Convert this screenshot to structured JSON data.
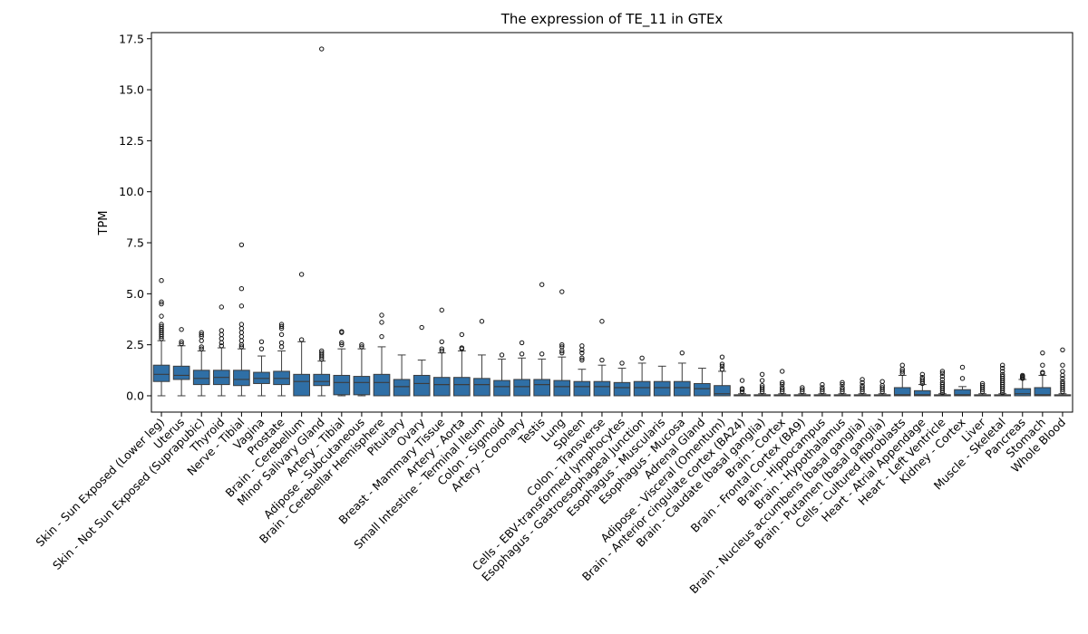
{
  "chart_data": {
    "type": "box",
    "title": "The expression of TE_11 in GTEx",
    "xlabel": "",
    "ylabel": "TPM",
    "ylim": [
      -0.8,
      17.8
    ],
    "yticks": [
      0.0,
      2.5,
      5.0,
      7.5,
      10.0,
      12.5,
      15.0,
      17.5
    ],
    "ytick_labels": [
      "0.0",
      "2.5",
      "5.0",
      "7.5",
      "10.0",
      "12.5",
      "15.0",
      "17.5"
    ],
    "grid": false,
    "legend": "none",
    "colors": {
      "box": "#2f6fa6",
      "line": "#3c3c3c"
    },
    "categories": [
      "Skin - Sun Exposed (Lower leg)",
      "Uterus",
      "Skin - Not Sun Exposed (Suprapubic)",
      "Thyroid",
      "Nerve - Tibial",
      "Vagina",
      "Prostate",
      "Brain - Cerebellum",
      "Minor Salivary Gland",
      "Artery - Tibial",
      "Adipose - Subcutaneous",
      "Brain - Cerebellar Hemisphere",
      "Pituitary",
      "Ovary",
      "Breast - Mammary Tissue",
      "Artery - Aorta",
      "Small Intestine - Terminal Ileum",
      "Colon - Sigmoid",
      "Artery - Coronary",
      "Testis",
      "Lung",
      "Spleen",
      "Colon - Transverse",
      "Cells - EBV-transformed lymphocytes",
      "Esophagus - Gastroesophageal Junction",
      "Esophagus - Muscularis",
      "Esophagus - Mucosa",
      "Adrenal Gland",
      "Adipose - Visceral (Omentum)",
      "Brain - Anterior cingulate cortex (BA24)",
      "Brain - Caudate (basal ganglia)",
      "Brain - Cortex",
      "Brain - Frontal Cortex (BA9)",
      "Brain - Hippocampus",
      "Brain - Hypothalamus",
      "Brain - Nucleus accumbens (basal ganglia)",
      "Brain - Putamen (basal ganglia)",
      "Cells - Cultured fibroblasts",
      "Heart - Atrial Appendage",
      "Heart - Left Ventricle",
      "Kidney - Cortex",
      "Liver",
      "Muscle - Skeletal",
      "Pancreas",
      "Stomach",
      "Whole Blood"
    ],
    "boxes": [
      {
        "q1": 0.7,
        "median": 1.05,
        "q3": 1.5,
        "whislo": 0.0,
        "whishi": 2.7,
        "fliers": [
          2.8,
          2.9,
          3.0,
          3.1,
          3.2,
          3.3,
          3.4,
          3.5,
          3.9,
          4.5,
          4.6,
          5.65
        ]
      },
      {
        "q1": 0.8,
        "median": 1.0,
        "q3": 1.45,
        "whislo": 0.0,
        "whishi": 2.45,
        "fliers": [
          2.55,
          2.65,
          3.25
        ]
      },
      {
        "q1": 0.55,
        "median": 0.85,
        "q3": 1.25,
        "whislo": 0.0,
        "whishi": 2.2,
        "fliers": [
          2.3,
          2.4,
          2.7,
          2.9,
          3.0,
          3.1
        ]
      },
      {
        "q1": 0.55,
        "median": 0.9,
        "q3": 1.25,
        "whislo": 0.0,
        "whishi": 2.35,
        "fliers": [
          2.45,
          2.6,
          2.8,
          3.0,
          3.2,
          4.35
        ]
      },
      {
        "q1": 0.5,
        "median": 0.8,
        "q3": 1.25,
        "whislo": 0.0,
        "whishi": 2.3,
        "fliers": [
          2.4,
          2.5,
          2.7,
          2.9,
          3.1,
          3.3,
          3.5,
          4.4,
          5.25,
          7.4
        ]
      },
      {
        "q1": 0.6,
        "median": 0.85,
        "q3": 1.15,
        "whislo": 0.0,
        "whishi": 1.95,
        "fliers": [
          2.3,
          2.65
        ]
      },
      {
        "q1": 0.55,
        "median": 0.85,
        "q3": 1.2,
        "whislo": 0.0,
        "whishi": 2.2,
        "fliers": [
          2.4,
          2.6,
          3.0,
          3.3,
          3.4,
          3.5
        ]
      },
      {
        "q1": 0.0,
        "median": 0.7,
        "q3": 1.05,
        "whislo": 0.0,
        "whishi": 2.65,
        "fliers": [
          2.75,
          5.95
        ]
      },
      {
        "q1": 0.5,
        "median": 0.7,
        "q3": 1.05,
        "whislo": 0.0,
        "whishi": 1.7,
        "fliers": [
          1.8,
          1.9,
          2.0,
          2.1,
          2.2,
          17.0
        ]
      },
      {
        "q1": 0.05,
        "median": 0.65,
        "q3": 1.0,
        "whislo": 0.0,
        "whishi": 2.3,
        "fliers": [
          2.5,
          2.6,
          3.1,
          3.15
        ]
      },
      {
        "q1": 0.05,
        "median": 0.65,
        "q3": 0.95,
        "whislo": 0.0,
        "whishi": 2.3,
        "fliers": [
          2.4,
          2.5
        ]
      },
      {
        "q1": 0.0,
        "median": 0.65,
        "q3": 1.05,
        "whislo": 0.0,
        "whishi": 2.4,
        "fliers": [
          2.9,
          3.6,
          3.95
        ]
      },
      {
        "q1": 0.0,
        "median": 0.45,
        "q3": 0.8,
        "whislo": 0.0,
        "whishi": 2.0,
        "fliers": []
      },
      {
        "q1": 0.0,
        "median": 0.6,
        "q3": 1.0,
        "whislo": 0.0,
        "whishi": 1.75,
        "fliers": [
          3.35
        ]
      },
      {
        "q1": 0.0,
        "median": 0.55,
        "q3": 0.9,
        "whislo": 0.0,
        "whishi": 2.1,
        "fliers": [
          2.2,
          2.3,
          2.65,
          4.2
        ]
      },
      {
        "q1": 0.0,
        "median": 0.55,
        "q3": 0.9,
        "whislo": 0.0,
        "whishi": 2.2,
        "fliers": [
          2.3,
          2.35,
          3.0
        ]
      },
      {
        "q1": 0.0,
        "median": 0.55,
        "q3": 0.85,
        "whislo": 0.0,
        "whishi": 2.0,
        "fliers": [
          3.65
        ]
      },
      {
        "q1": 0.0,
        "median": 0.45,
        "q3": 0.75,
        "whislo": 0.0,
        "whishi": 1.8,
        "fliers": [
          2.0
        ]
      },
      {
        "q1": 0.0,
        "median": 0.45,
        "q3": 0.8,
        "whislo": 0.0,
        "whishi": 1.85,
        "fliers": [
          2.05,
          2.6
        ]
      },
      {
        "q1": 0.0,
        "median": 0.55,
        "q3": 0.8,
        "whislo": 0.0,
        "whishi": 1.8,
        "fliers": [
          2.05,
          5.45
        ]
      },
      {
        "q1": 0.0,
        "median": 0.45,
        "q3": 0.75,
        "whislo": 0.0,
        "whishi": 1.9,
        "fliers": [
          2.1,
          2.2,
          2.4,
          2.5,
          5.1
        ]
      },
      {
        "q1": 0.0,
        "median": 0.45,
        "q3": 0.7,
        "whislo": 0.0,
        "whishi": 1.3,
        "fliers": [
          1.75,
          1.85,
          2.1,
          2.25,
          2.45
        ]
      },
      {
        "q1": 0.0,
        "median": 0.45,
        "q3": 0.7,
        "whislo": 0.0,
        "whishi": 1.5,
        "fliers": [
          1.75,
          3.65
        ]
      },
      {
        "q1": 0.0,
        "median": 0.4,
        "q3": 0.65,
        "whislo": 0.0,
        "whishi": 1.35,
        "fliers": [
          1.6
        ]
      },
      {
        "q1": 0.0,
        "median": 0.4,
        "q3": 0.7,
        "whislo": 0.0,
        "whishi": 1.6,
        "fliers": [
          1.85
        ]
      },
      {
        "q1": 0.0,
        "median": 0.4,
        "q3": 0.7,
        "whislo": 0.0,
        "whishi": 1.45,
        "fliers": []
      },
      {
        "q1": 0.0,
        "median": 0.4,
        "q3": 0.7,
        "whislo": 0.0,
        "whishi": 1.6,
        "fliers": [
          2.1
        ]
      },
      {
        "q1": 0.0,
        "median": 0.35,
        "q3": 0.6,
        "whislo": 0.0,
        "whishi": 1.35,
        "fliers": []
      },
      {
        "q1": 0.0,
        "median": 0.1,
        "q3": 0.5,
        "whislo": 0.0,
        "whishi": 1.2,
        "fliers": [
          1.3,
          1.45,
          1.55,
          1.9
        ]
      },
      {
        "q1": 0.0,
        "median": 0.02,
        "q3": 0.05,
        "whislo": 0.0,
        "whishi": 0.1,
        "fliers": [
          0.2,
          0.3,
          0.35,
          0.75
        ]
      },
      {
        "q1": 0.0,
        "median": 0.02,
        "q3": 0.05,
        "whislo": 0.0,
        "whishi": 0.1,
        "fliers": [
          0.2,
          0.3,
          0.4,
          0.5,
          0.75,
          1.05
        ]
      },
      {
        "q1": 0.0,
        "median": 0.02,
        "q3": 0.05,
        "whislo": 0.0,
        "whishi": 0.1,
        "fliers": [
          0.2,
          0.3,
          0.4,
          0.55,
          0.65,
          1.2
        ]
      },
      {
        "q1": 0.0,
        "median": 0.02,
        "q3": 0.05,
        "whislo": 0.0,
        "whishi": 0.1,
        "fliers": [
          0.2,
          0.3,
          0.4
        ]
      },
      {
        "q1": 0.0,
        "median": 0.02,
        "q3": 0.05,
        "whislo": 0.0,
        "whishi": 0.1,
        "fliers": [
          0.2,
          0.3,
          0.4,
          0.55
        ]
      },
      {
        "q1": 0.0,
        "median": 0.02,
        "q3": 0.05,
        "whislo": 0.0,
        "whishi": 0.1,
        "fliers": [
          0.2,
          0.3,
          0.4,
          0.55,
          0.65
        ]
      },
      {
        "q1": 0.0,
        "median": 0.02,
        "q3": 0.05,
        "whislo": 0.0,
        "whishi": 0.1,
        "fliers": [
          0.2,
          0.3,
          0.4,
          0.5,
          0.65,
          0.8
        ]
      },
      {
        "q1": 0.0,
        "median": 0.02,
        "q3": 0.05,
        "whislo": 0.0,
        "whishi": 0.1,
        "fliers": [
          0.2,
          0.3,
          0.4,
          0.5,
          0.7
        ]
      },
      {
        "q1": 0.0,
        "median": 0.05,
        "q3": 0.4,
        "whislo": 0.0,
        "whishi": 1.0,
        "fliers": [
          1.1,
          1.2,
          1.3,
          1.5
        ]
      },
      {
        "q1": 0.0,
        "median": 0.05,
        "q3": 0.25,
        "whislo": 0.0,
        "whishi": 0.55,
        "fliers": [
          0.6,
          0.7,
          0.8,
          0.9,
          1.05
        ]
      },
      {
        "q1": 0.0,
        "median": 0.02,
        "q3": 0.05,
        "whislo": 0.0,
        "whishi": 0.1,
        "fliers": [
          0.15,
          0.25,
          0.35,
          0.45,
          0.55,
          0.65,
          0.8,
          0.95,
          1.1,
          1.2
        ]
      },
      {
        "q1": 0.0,
        "median": 0.05,
        "q3": 0.3,
        "whislo": 0.0,
        "whishi": 0.45,
        "fliers": [
          0.85,
          1.4
        ]
      },
      {
        "q1": 0.0,
        "median": 0.02,
        "q3": 0.05,
        "whislo": 0.0,
        "whishi": 0.1,
        "fliers": [
          0.2,
          0.3,
          0.4,
          0.5,
          0.6
        ]
      },
      {
        "q1": 0.0,
        "median": 0.02,
        "q3": 0.05,
        "whislo": 0.0,
        "whishi": 0.1,
        "fliers": [
          0.15,
          0.25,
          0.35,
          0.45,
          0.55,
          0.65,
          0.75,
          0.85,
          0.95,
          1.05,
          1.2,
          1.35,
          1.5
        ]
      },
      {
        "q1": 0.0,
        "median": 0.1,
        "q3": 0.35,
        "whislo": 0.0,
        "whishi": 0.8,
        "fliers": [
          0.85,
          0.9,
          0.95,
          1.0
        ]
      },
      {
        "q1": 0.0,
        "median": 0.05,
        "q3": 0.4,
        "whislo": 0.0,
        "whishi": 1.0,
        "fliers": [
          1.1,
          1.15,
          1.5,
          2.1
        ]
      },
      {
        "q1": 0.0,
        "median": 0.02,
        "q3": 0.05,
        "whislo": 0.0,
        "whishi": 0.1,
        "fliers": [
          0.2,
          0.3,
          0.4,
          0.5,
          0.6,
          0.7,
          0.85,
          1.0,
          1.2,
          1.5,
          2.25
        ]
      }
    ]
  }
}
